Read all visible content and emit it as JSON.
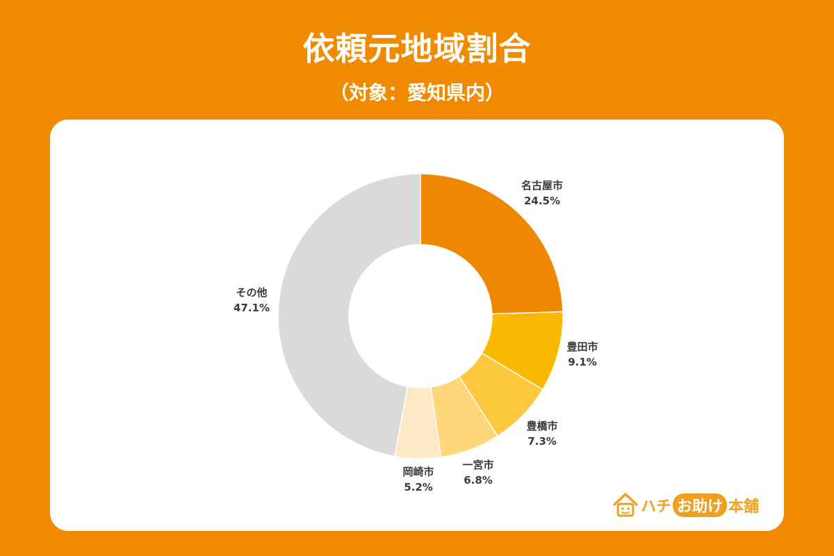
{
  "title": "依頼元地域割合",
  "subtitle": "（対象：愛知県内）",
  "chart_data": {
    "type": "pie",
    "style": "donut",
    "categories": [
      "名古屋市",
      "豊田市",
      "豊橋市",
      "一宮市",
      "岡崎市",
      "その他"
    ],
    "values": [
      24.5,
      9.1,
      7.3,
      6.8,
      5.2,
      47.1
    ],
    "value_labels": [
      "24.5%",
      "9.1%",
      "7.3%",
      "6.8%",
      "5.2%",
      "47.1%"
    ],
    "colors": [
      "#ef8800",
      "#fbb800",
      "#fdc83e",
      "#ffd77a",
      "#fee9c4",
      "#dadada"
    ],
    "unit": "%"
  },
  "logo": {
    "text_left": "ハチ",
    "text_pill": "お助け",
    "text_right": "本舗",
    "icon": "house-icon",
    "brand_color": "#f0a020"
  }
}
